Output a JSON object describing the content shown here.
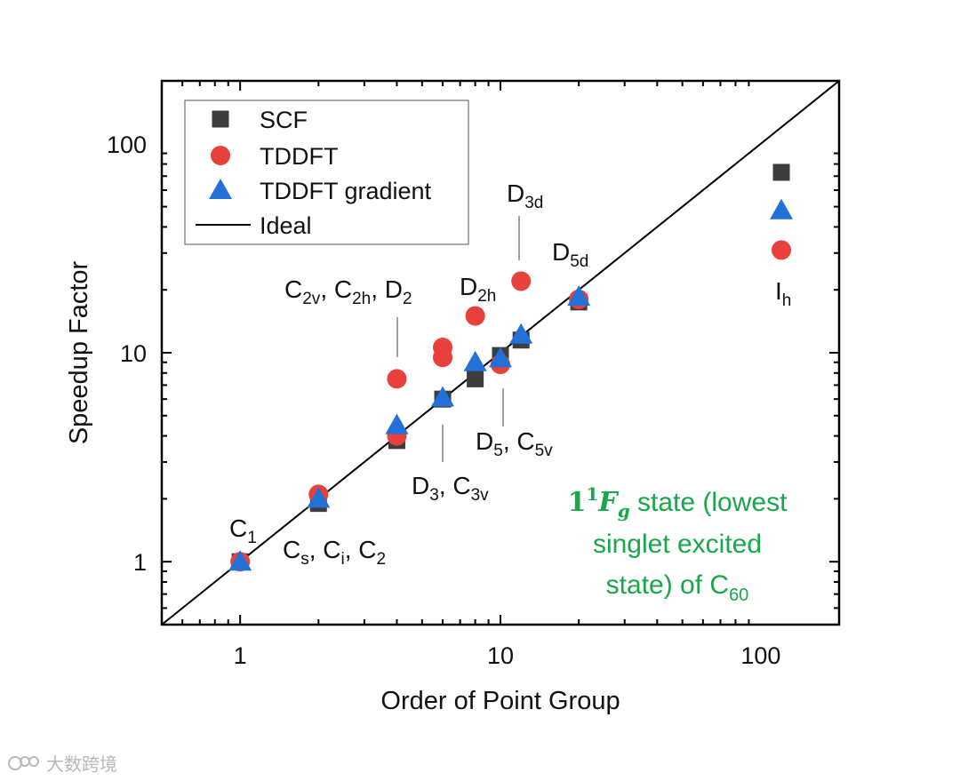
{
  "chart_data": {
    "type": "scatter",
    "xscale": "log",
    "yscale": "log",
    "xlim": [
      0.5,
      200
    ],
    "ylim": [
      0.5,
      200
    ],
    "xlabel": "Order of Point Group",
    "ylabel": "Speedup Factor",
    "xticks": [
      {
        "value": 1,
        "label": "1"
      },
      {
        "value": 10,
        "label": "10"
      },
      {
        "value": 100,
        "label": "100"
      }
    ],
    "yticks": [
      {
        "value": 1,
        "label": "1"
      },
      {
        "value": 10,
        "label": "10"
      },
      {
        "value": 100,
        "label": "100"
      }
    ],
    "legend_position": "top-left",
    "series": [
      {
        "name": "SCF",
        "marker": "square",
        "color": "#3d3d3d",
        "x": [
          1,
          2,
          4,
          6,
          8,
          10,
          12,
          20,
          120
        ],
        "y": [
          1.0,
          1.9,
          3.8,
          6.0,
          7.5,
          9.7,
          11.5,
          17.5,
          73
        ]
      },
      {
        "name": "TDDFT",
        "marker": "circle",
        "color": "#e8413c",
        "x": [
          1,
          2,
          4,
          4,
          6,
          6,
          8,
          10,
          12,
          20,
          120
        ],
        "y": [
          1.0,
          2.1,
          4.0,
          7.5,
          9.5,
          10.6,
          15,
          8.8,
          22,
          18,
          31
        ]
      },
      {
        "name": "TDDFT gradient",
        "marker": "triangle",
        "color": "#2370d6",
        "x": [
          1,
          2,
          4,
          6,
          8,
          10,
          12,
          20,
          120
        ],
        "y": [
          1.0,
          2.0,
          4.5,
          6.1,
          9.0,
          9.4,
          12.2,
          18.5,
          48
        ]
      },
      {
        "name": "Ideal",
        "marker": "line",
        "color": "#000000",
        "x": [
          0.5,
          200
        ],
        "y": [
          0.5,
          200
        ]
      }
    ],
    "annotations": [
      {
        "id": "c1",
        "main": "C",
        "parts": [
          {
            "sub": "1"
          }
        ]
      },
      {
        "id": "cs",
        "main": "C",
        "parts": [
          {
            "sub": "s"
          },
          {
            "text": ", C"
          },
          {
            "sub": "i"
          },
          {
            "text": ", C"
          },
          {
            "sub": "2"
          }
        ]
      },
      {
        "id": "c2v",
        "main": "C",
        "parts": [
          {
            "sub": "2v"
          },
          {
            "text": ", C"
          },
          {
            "sub": "2h"
          },
          {
            "text": ", D"
          },
          {
            "sub": "2"
          }
        ]
      },
      {
        "id": "d3",
        "main": "D",
        "parts": [
          {
            "sub": "3"
          },
          {
            "text": ", C"
          },
          {
            "sub": "3v"
          }
        ]
      },
      {
        "id": "d2h",
        "main": "D",
        "parts": [
          {
            "sub": "2h"
          }
        ]
      },
      {
        "id": "d5",
        "main": "D",
        "parts": [
          {
            "sub": "5"
          },
          {
            "text": ", C"
          },
          {
            "sub": "5v"
          }
        ]
      },
      {
        "id": "d3d",
        "main": "D",
        "parts": [
          {
            "sub": "3d"
          }
        ]
      },
      {
        "id": "d5d",
        "main": "D",
        "parts": [
          {
            "sub": "5d"
          }
        ]
      },
      {
        "id": "ih",
        "main": "I",
        "parts": [
          {
            "sub": "h"
          }
        ]
      }
    ],
    "note": {
      "color": "#1aa64a",
      "line1_math": "1",
      "line1_sup": "1",
      "line1_var": "F",
      "line1_var_sub": "g",
      "line1_rest": " state (lowest",
      "line2": "singlet excited",
      "line3_prefix": "state) of C",
      "line3_sub": "60"
    }
  },
  "watermark": {
    "text": "大数跨境"
  }
}
